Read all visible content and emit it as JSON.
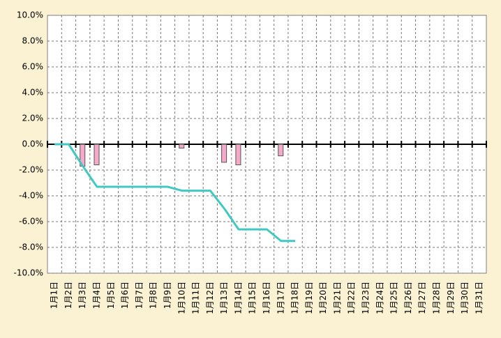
{
  "chart_data": {
    "type": "combo",
    "categories": [
      "1月1日",
      "1月2日",
      "1月3日",
      "1月4日",
      "1月5日",
      "1月6日",
      "1月7日",
      "1月8日",
      "1月9日",
      "1月10日",
      "1月11日",
      "1月12日",
      "1月13日",
      "1月14日",
      "1月15日",
      "1月16日",
      "1月17日",
      "1月18日",
      "1月19日",
      "1月20日",
      "1月21日",
      "1月22日",
      "1月23日",
      "1月24日",
      "1月25日",
      "1月26日",
      "1月27日",
      "1月28日",
      "1月29日",
      "1月30日",
      "1月31日"
    ],
    "series": [
      {
        "type": "bar",
        "color": "#f6a9c9",
        "values": [
          null,
          null,
          -1.7,
          -1.6,
          null,
          null,
          null,
          null,
          null,
          -0.3,
          null,
          null,
          -1.4,
          -1.6,
          null,
          null,
          -0.9,
          null,
          null,
          null,
          null,
          null,
          null,
          null,
          null,
          null,
          null,
          null,
          null,
          null,
          null
        ]
      },
      {
        "type": "line",
        "color": "#3fc9c2",
        "values": [
          0,
          0,
          -1.7,
          -3.3,
          -3.3,
          -3.3,
          -3.3,
          -3.3,
          -3.3,
          -3.6,
          -3.6,
          -3.6,
          -5.0,
          -6.6,
          -6.6,
          -6.6,
          -7.5,
          -7.5,
          null,
          null,
          null,
          null,
          null,
          null,
          null,
          null,
          null,
          null,
          null,
          null,
          null
        ]
      }
    ],
    "ylim": [
      -10,
      10
    ],
    "yticks": [
      {
        "value": -10,
        "label": "-10.0%"
      },
      {
        "value": -8,
        "label": "-8.0%"
      },
      {
        "value": -6,
        "label": "-6.0%"
      },
      {
        "value": -4,
        "label": "-4.0%"
      },
      {
        "value": -2,
        "label": "-2.0%"
      },
      {
        "value": 0,
        "label": "0.0%"
      },
      {
        "value": 2,
        "label": "2.0%"
      },
      {
        "value": 4,
        "label": "4.0%"
      },
      {
        "value": 6,
        "label": "6.0%"
      },
      {
        "value": 8,
        "label": "8.0%"
      },
      {
        "value": 10,
        "label": "10.0%"
      }
    ],
    "grid": true
  }
}
